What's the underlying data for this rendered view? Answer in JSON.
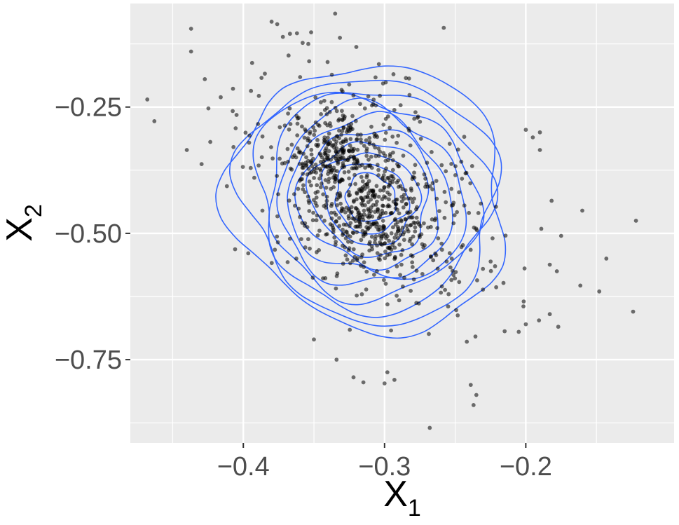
{
  "chart_data": {
    "type": "scatter",
    "title": "",
    "xlabel": "X",
    "xlabel_subscript": "1",
    "ylabel": "X",
    "ylabel_subscript": "2",
    "xlim": [
      -0.48,
      -0.095
    ],
    "ylim": [
      -0.915,
      -0.045
    ],
    "x_ticks": [
      -0.4,
      -0.3,
      -0.2
    ],
    "x_tick_labels": [
      "−0.4",
      "−0.3",
      "−0.2"
    ],
    "y_ticks": [
      -0.25,
      -0.5,
      -0.75
    ],
    "y_tick_labels": [
      "−0.25",
      "−0.50",
      "−0.75"
    ],
    "grid": true,
    "colors": {
      "panel": "#ebebeb",
      "grid": "#ffffff",
      "points": "#000000",
      "contour": "#3366ff"
    },
    "point_count": 1000,
    "contour_levels": 11,
    "density_center": [
      -0.31,
      -0.43
    ],
    "series": [
      {
        "type": "scatter",
        "points": [
          [
            -0.468,
            -0.235
          ],
          [
            -0.463,
            -0.278
          ],
          [
            -0.437,
            -0.095
          ],
          [
            -0.437,
            -0.14
          ],
          [
            -0.44,
            -0.335
          ],
          [
            -0.376,
            -0.086
          ],
          [
            -0.38,
            -0.081
          ],
          [
            -0.358,
            -0.123
          ],
          [
            -0.372,
            -0.111
          ],
          [
            -0.367,
            -0.105
          ],
          [
            -0.362,
            -0.104
          ],
          [
            -0.352,
            -0.102
          ],
          [
            -0.335,
            -0.065
          ],
          [
            -0.32,
            -0.131
          ],
          [
            -0.304,
            -0.165
          ],
          [
            -0.354,
            -0.125
          ],
          [
            -0.175,
            -0.505
          ],
          [
            -0.178,
            -0.575
          ],
          [
            -0.16,
            -0.455
          ],
          [
            -0.148,
            -0.615
          ],
          [
            -0.143,
            -0.55
          ],
          [
            -0.122,
            -0.475
          ],
          [
            -0.124,
            -0.655
          ],
          [
            -0.183,
            -0.562
          ],
          [
            -0.19,
            -0.335
          ],
          [
            -0.2,
            -0.68
          ],
          [
            -0.205,
            -0.695
          ],
          [
            -0.2,
            -0.295
          ],
          [
            -0.195,
            -0.31
          ],
          [
            -0.19,
            -0.3
          ],
          [
            -0.183,
            -0.66
          ],
          [
            -0.177,
            -0.685
          ],
          [
            -0.235,
            -0.82
          ],
          [
            -0.237,
            -0.84
          ],
          [
            -0.239,
            -0.8
          ],
          [
            -0.268,
            -0.885
          ],
          [
            -0.315,
            -0.795
          ],
          [
            -0.322,
            -0.785
          ],
          [
            -0.334,
            -0.75
          ],
          [
            -0.293,
            -0.79
          ],
          [
            -0.298,
            -0.775
          ],
          [
            -0.3,
            -0.797
          ],
          [
            -0.35,
            -0.71
          ]
        ]
      },
      {
        "type": "contour",
        "name": ""
      }
    ]
  }
}
